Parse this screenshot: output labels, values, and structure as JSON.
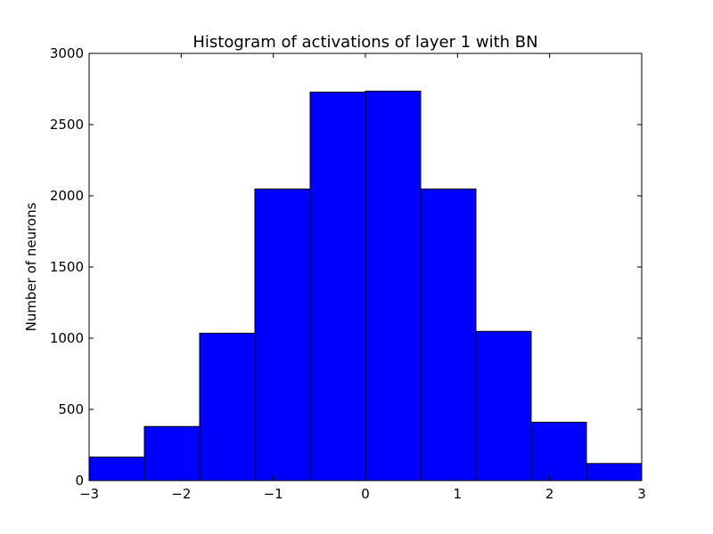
{
  "chart_data": {
    "type": "bar",
    "title": "Histogram of activations of layer 1  with BN",
    "xlabel": "",
    "ylabel": "Number of neurons",
    "xlim": [
      -3,
      3
    ],
    "ylim": [
      0,
      3000
    ],
    "bins": [
      {
        "x0": -3.0,
        "x1": -2.4,
        "value": 165
      },
      {
        "x0": -2.4,
        "x1": -1.8,
        "value": 380
      },
      {
        "x0": -1.8,
        "x1": -1.2,
        "value": 1035
      },
      {
        "x0": -1.2,
        "x1": -0.6,
        "value": 2048
      },
      {
        "x0": -0.6,
        "x1": 0.0,
        "value": 2728
      },
      {
        "x0": 0.0,
        "x1": 0.6,
        "value": 2735
      },
      {
        "x0": 0.6,
        "x1": 1.2,
        "value": 2048
      },
      {
        "x0": 1.2,
        "x1": 1.8,
        "value": 1048
      },
      {
        "x0": 1.8,
        "x1": 2.4,
        "value": 410
      },
      {
        "x0": 2.4,
        "x1": 3.0,
        "value": 120
      }
    ],
    "x_ticks": [
      -3,
      -2,
      -1,
      0,
      1,
      2,
      3
    ],
    "x_tick_labels": [
      "−3",
      "−2",
      "−1",
      "0",
      "1",
      "2",
      "3"
    ],
    "y_ticks": [
      0,
      500,
      1000,
      1500,
      2000,
      2500,
      3000
    ],
    "y_tick_labels": [
      "0",
      "500",
      "1000",
      "1500",
      "2000",
      "2500",
      "3000"
    ],
    "bar_color": "#0000ff",
    "edge_color": "#000000",
    "grid": false,
    "legend": "none"
  }
}
